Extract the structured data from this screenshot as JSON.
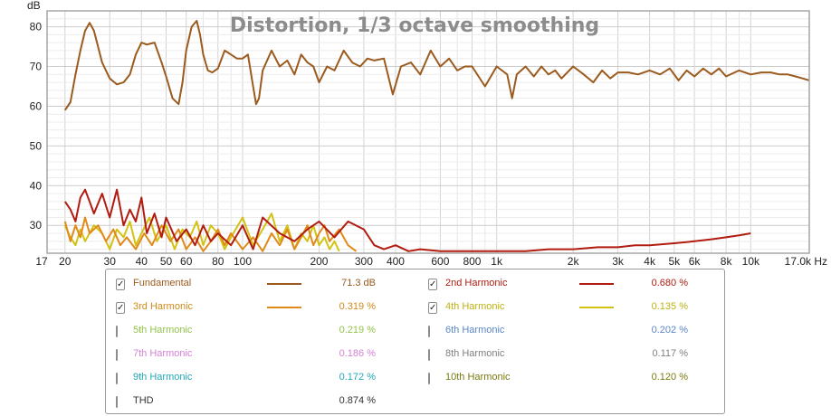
{
  "chart_data": {
    "type": "line",
    "title": "Distortion, 1/3 octave smoothing",
    "ylabel": "dB",
    "xlabel": "",
    "x_unit": "Hz",
    "x_scale": "log",
    "xlim": [
      17,
      17000
    ],
    "ylim": [
      23,
      84
    ],
    "y_ticks": [
      30,
      40,
      50,
      60,
      70,
      80
    ],
    "y_tick_labels": [
      "30",
      "40",
      "50",
      "60",
      "70",
      "80"
    ],
    "x_ticks": [
      17,
      20,
      30,
      40,
      50,
      60,
      80,
      100,
      200,
      300,
      400,
      600,
      800,
      1000,
      2000,
      3000,
      4000,
      5000,
      6000,
      8000,
      10000,
      17000
    ],
    "x_tick_labels": [
      "17",
      "20",
      "30",
      "40",
      "50",
      "60",
      "80",
      "100",
      "200",
      "300",
      "400",
      "600",
      "800",
      "1k",
      "2k",
      "3k",
      "4k",
      "5k",
      "6k",
      "8k",
      "10k",
      "17.0k Hz"
    ],
    "grid": true,
    "series": [
      {
        "name": "Fundamental",
        "color": "#9b5a1e",
        "x": [
          20,
          21,
          22,
          23,
          24,
          25,
          26,
          28,
          30,
          32,
          34,
          36,
          38,
          40,
          42,
          45,
          48,
          50,
          53,
          56,
          58,
          60,
          63,
          66,
          68,
          70,
          73,
          76,
          80,
          85,
          90,
          95,
          100,
          105,
          110,
          113,
          116,
          120,
          130,
          140,
          150,
          160,
          170,
          180,
          190,
          200,
          215,
          230,
          250,
          270,
          290,
          310,
          330,
          360,
          390,
          420,
          460,
          500,
          550,
          600,
          650,
          700,
          750,
          800,
          900,
          1000,
          1100,
          1150,
          1200,
          1300,
          1400,
          1500,
          1600,
          1700,
          1800,
          2000,
          2200,
          2400,
          2600,
          2800,
          3000,
          3300,
          3600,
          4000,
          4400,
          4800,
          5200,
          5600,
          6000,
          6500,
          7000,
          7500,
          8000,
          9000,
          10000,
          11000,
          12000,
          13000,
          14000,
          15000,
          16000,
          17000
        ],
        "y": [
          59,
          61,
          68,
          74,
          79,
          81,
          79,
          71,
          67,
          65.5,
          66,
          68,
          73,
          76,
          75.5,
          76,
          71,
          67.5,
          62,
          60.5,
          66,
          74,
          80,
          81.5,
          78,
          73,
          69,
          68.5,
          69.5,
          74,
          73,
          72,
          72,
          73,
          65,
          60.5,
          62,
          69,
          74,
          70,
          71.5,
          68,
          73,
          71,
          70,
          66,
          70,
          69,
          74,
          71,
          70,
          72,
          71.5,
          72,
          63,
          70,
          71,
          68,
          74,
          70,
          72,
          69,
          70,
          70,
          65,
          70,
          68,
          62,
          68,
          70,
          67.5,
          70,
          68,
          69,
          67,
          70,
          68,
          66,
          69,
          67,
          68.5,
          68.5,
          68,
          69,
          68,
          69.5,
          66.5,
          69,
          67.5,
          69.5,
          68,
          69.5,
          67.5,
          69,
          68,
          68.5,
          68.5,
          68,
          68,
          67.5,
          67,
          66.5
        ]
      },
      {
        "name": "2nd Harmonic",
        "color": "#b21b10",
        "x": [
          20,
          21,
          22,
          23,
          24,
          25,
          26,
          28,
          30,
          32,
          34,
          36,
          38,
          40,
          42,
          45,
          48,
          50,
          55,
          60,
          65,
          70,
          75,
          80,
          90,
          100,
          110,
          120,
          140,
          160,
          180,
          200,
          230,
          260,
          300,
          330,
          360,
          400,
          450,
          500,
          600,
          700,
          800,
          1000,
          1300,
          1600,
          2000,
          2500,
          3000,
          3500,
          4000,
          5000,
          6000,
          7000,
          8000,
          9000,
          10000
        ],
        "y": [
          36,
          34,
          31,
          37,
          39,
          36,
          33,
          38,
          32,
          39,
          30,
          34,
          31,
          37,
          28,
          33,
          27,
          32,
          26,
          29,
          25,
          30,
          26,
          28,
          25,
          30,
          24,
          32,
          28,
          26,
          29,
          31,
          27,
          31,
          29,
          25,
          24,
          25,
          23.5,
          24,
          23.5,
          23.5,
          23.5,
          23.5,
          23.5,
          24,
          24,
          24.5,
          24.5,
          25,
          25,
          25.5,
          26,
          26.5,
          27,
          27.5,
          28
        ]
      },
      {
        "name": "3rd Harmonic",
        "color": "#e08a1a",
        "x": [
          20,
          21,
          22,
          23,
          24,
          25,
          27,
          29,
          31,
          33,
          35,
          38,
          41,
          44,
          48,
          52,
          56,
          60,
          65,
          70,
          75,
          80,
          85,
          90,
          100,
          110,
          120,
          130,
          140,
          150,
          160,
          170,
          180,
          190,
          200,
          210,
          220,
          240,
          260,
          280
        ],
        "y": [
          31,
          26,
          30,
          27,
          32,
          28,
          30,
          26,
          29,
          25,
          27,
          24,
          28,
          25,
          30,
          26,
          29,
          24,
          27,
          23.5,
          26,
          29,
          25,
          28,
          24,
          27,
          23.5,
          28,
          25,
          29,
          24,
          27,
          30,
          25,
          28,
          30,
          26,
          29,
          25,
          23.5
        ]
      },
      {
        "name": "4th Harmonic",
        "color": "#d2c313",
        "x": [
          20,
          21,
          22,
          23,
          24,
          26,
          28,
          30,
          32,
          34,
          36,
          38,
          40,
          43,
          46,
          50,
          54,
          58,
          62,
          66,
          70,
          75,
          80,
          85,
          90,
          100,
          110,
          120,
          130,
          140,
          150,
          160,
          170,
          180,
          190,
          200,
          210,
          220,
          230,
          240
        ],
        "y": [
          30,
          27,
          25,
          29,
          26,
          30,
          28,
          24,
          29,
          27,
          31,
          25,
          28,
          32,
          26,
          30,
          24,
          29,
          27,
          31,
          25,
          30,
          28,
          24,
          27,
          32,
          25,
          29,
          33,
          26,
          30,
          24,
          28,
          26,
          30,
          25,
          27,
          24,
          26,
          23.5
        ]
      }
    ]
  },
  "legend": {
    "rows": [
      [
        {
          "checked": true,
          "name": "Fundamental",
          "color": "#9b5a1e",
          "swatch": "#9b5a1e",
          "value": "71.3 dB",
          "value_color": "#9b5a1e"
        },
        {
          "checked": true,
          "name": "2nd Harmonic",
          "color": "#b21b10",
          "swatch": "#b21b10",
          "value": "0.680 %",
          "value_color": "#b21b10"
        }
      ],
      [
        {
          "checked": true,
          "name": "3rd Harmonic",
          "color": "#d08a1a",
          "swatch": "#e08a1a",
          "value": "0.319 %",
          "value_color": "#d08a1a"
        },
        {
          "checked": true,
          "name": "4th Harmonic",
          "color": "#bdb212",
          "swatch": "#d2c313",
          "value": "0.135 %",
          "value_color": "#bdb212"
        }
      ],
      [
        {
          "checked": false,
          "name": "5th Harmonic",
          "color": "#93c44a",
          "swatch": "",
          "value": "0.219 %",
          "value_color": "#93c44a"
        },
        {
          "checked": false,
          "name": "6th Harmonic",
          "color": "#5a86c8",
          "swatch": "",
          "value": "0.202 %",
          "value_color": "#5a86c8"
        }
      ],
      [
        {
          "checked": false,
          "name": "7th Harmonic",
          "color": "#d680d6",
          "swatch": "",
          "value": "0.186 %",
          "value_color": "#d680d6"
        },
        {
          "checked": false,
          "name": "8th Harmonic",
          "color": "#808080",
          "swatch": "",
          "value": "0.117 %",
          "value_color": "#808080"
        }
      ],
      [
        {
          "checked": false,
          "name": "9th Harmonic",
          "color": "#22a8b8",
          "swatch": "",
          "value": "0.172 %",
          "value_color": "#22a8b8"
        },
        {
          "checked": false,
          "name": "10th Harmonic",
          "color": "#7a7a10",
          "swatch": "",
          "value": "0.120 %",
          "value_color": "#7a7a10"
        }
      ],
      [
        {
          "checked": false,
          "name": "THD",
          "color": "#333333",
          "swatch": "",
          "value": "0.874 %",
          "value_color": "#333333"
        }
      ]
    ]
  }
}
